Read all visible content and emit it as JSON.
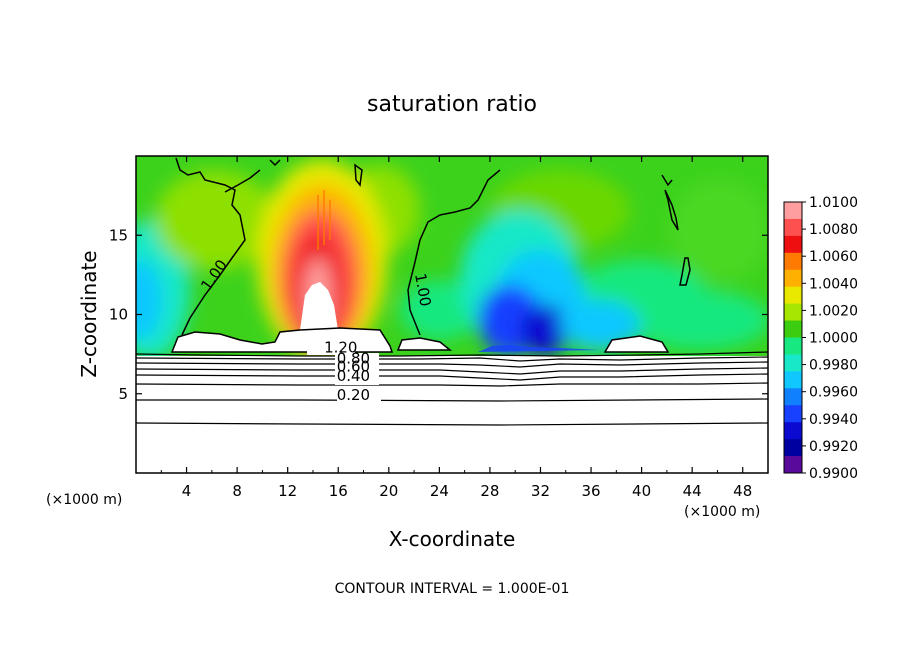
{
  "chart_data": {
    "type": "heatmap",
    "title": "saturation ratio",
    "xlabel": "X-coordinate",
    "ylabel": "Z-coordinate",
    "x_unit_left": "(×1000 m)",
    "x_unit_right": "(×1000 m)",
    "xlim": [
      0,
      50
    ],
    "ylim": [
      0,
      20
    ],
    "xticks": [
      "4",
      "8",
      "12",
      "16",
      "20",
      "24",
      "28",
      "32",
      "36",
      "40",
      "44",
      "48"
    ],
    "yticks": [
      "5",
      "10",
      "15"
    ],
    "footer": "CONTOUR INTERVAL = 1.000E-01",
    "colorbar": {
      "labels": [
        "1.0100",
        "1.0080",
        "1.0060",
        "1.0040",
        "1.0020",
        "1.0000",
        "0.9980",
        "0.9960",
        "0.9940",
        "0.9920",
        "0.9900"
      ],
      "colors": [
        "#ff9e9e",
        "#ff5050",
        "#ee1010",
        "#ff7a00",
        "#ffb000",
        "#e9e900",
        "#a6e600",
        "#3ccc10",
        "#18e880",
        "#18e8c8",
        "#10c8ff",
        "#1080ff",
        "#1840ff",
        "#0a0ad0",
        "#0000a0",
        "#5a0a9a"
      ]
    },
    "contour_labels": [
      {
        "text": "1.20",
        "x": 16.2,
        "y": 7.6
      },
      {
        "text": "0.80",
        "x": 17.2,
        "y": 6.9
      },
      {
        "text": "0.60",
        "x": 17.2,
        "y": 6.4
      },
      {
        "text": "0.40",
        "x": 17.2,
        "y": 5.8
      },
      {
        "text": "0.20",
        "x": 17.2,
        "y": 4.6
      },
      {
        "text": "1.00",
        "x": 6.5,
        "y": 12.3
      },
      {
        "text": "1.00",
        "x": 22.3,
        "y": 11.5
      }
    ],
    "layer_contours_z": [
      7.6,
      7.3,
      7.0,
      6.6,
      6.2,
      5.6,
      4.6,
      3.2
    ],
    "features": [
      {
        "name": "supersaturated-core",
        "x": 14.6,
        "z": 11.5,
        "color": "#ff2a2a"
      },
      {
        "name": "subsaturated-column",
        "x": 30.0,
        "z": 9.0,
        "color": "#0a0ad0"
      },
      {
        "name": "subsaturated-edge",
        "x": 0.5,
        "z": 10.0,
        "color": "#10c8ff"
      }
    ]
  }
}
